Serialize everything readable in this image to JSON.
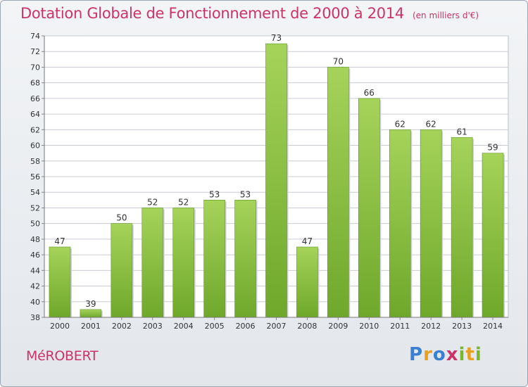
{
  "title": "Dotation Globale de Fonctionnement de 2000 à 2014",
  "subtitle": "(en milliers d'€)",
  "commune": "MéROBERT",
  "logo": {
    "text": "Proxiti",
    "letters": [
      {
        "ch": "P",
        "color": "#3a7fd1"
      },
      {
        "ch": "r",
        "color": "#e8a020"
      },
      {
        "ch": "o",
        "color": "#3a7fd1"
      },
      {
        "ch": "x",
        "color": "#cc3366"
      },
      {
        "ch": "i",
        "color": "#7ab830"
      },
      {
        "ch": "t",
        "color": "#e8a020"
      },
      {
        "ch": "i",
        "color": "#7ab830"
      }
    ]
  },
  "colors": {
    "bar_light": "#a6d35a",
    "bar_dark": "#6ea82a",
    "title": "#cc3366",
    "grid": "#c8ccd2"
  },
  "chart_data": {
    "type": "bar",
    "categories": [
      "2000",
      "2001",
      "2002",
      "2003",
      "2004",
      "2005",
      "2006",
      "2007",
      "2008",
      "2009",
      "2010",
      "2011",
      "2012",
      "2013",
      "2014"
    ],
    "values": [
      47,
      39,
      50,
      52,
      52,
      53,
      53,
      73,
      47,
      70,
      66,
      62,
      62,
      61,
      59
    ],
    "ylim": [
      38,
      74
    ],
    "yticks": [
      38,
      40,
      42,
      44,
      46,
      48,
      50,
      52,
      54,
      56,
      58,
      60,
      62,
      64,
      66,
      68,
      70,
      72,
      74
    ],
    "grid": true
  }
}
